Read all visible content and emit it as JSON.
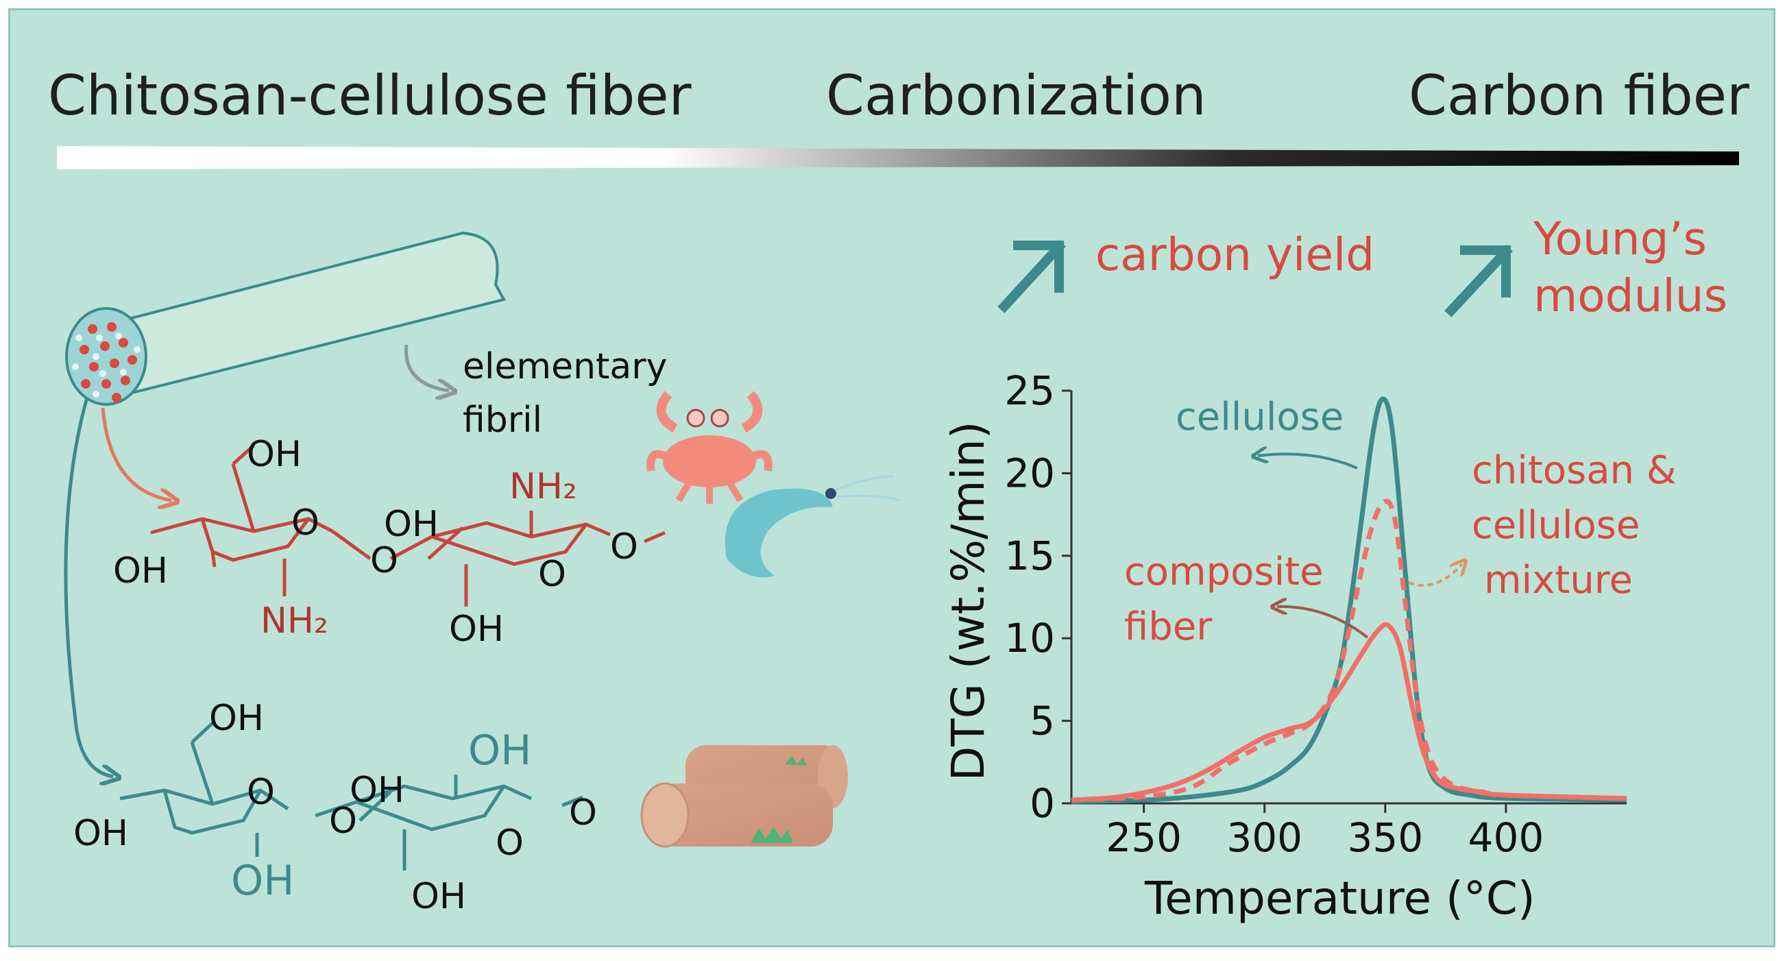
{
  "header": {
    "left": "Chitosan-cellulose fiber",
    "middle": "Carbonization",
    "right": "Carbon fiber"
  },
  "properties": {
    "carbon_yield": "carbon yield",
    "youngs_line1": "Young’s",
    "youngs_line2": "modulus"
  },
  "fiber": {
    "elementary_line1": "elementary",
    "elementary_line2": "fibril"
  },
  "chitosan_structure": {
    "oh_top": "OH",
    "oh_left": "OH",
    "o_ring1": "O",
    "nh2_bottom": "NH₂",
    "o_link": "O",
    "oh_mid": "OH",
    "nh2_top": "NH₂",
    "o_ring2": "O",
    "oh_bottom": "OH",
    "o_end": "O"
  },
  "cellulose_structure": {
    "oh_top": "OH",
    "oh_left": "OH",
    "o_ring1": "O",
    "oh_bottom_accent": "OH",
    "o_link": "O",
    "oh_mid": "OH",
    "oh_top_accent": "OH",
    "o_ring2": "O",
    "oh_bottom": "OH",
    "o_end": "O"
  },
  "colors": {
    "background": "#bde3d8",
    "teal": "#3d8a8c",
    "red": "#d84a3e",
    "chitosan_line": "#c8443a",
    "salmon": "#f07067"
  },
  "chart_data": {
    "type": "line",
    "xlabel": "Temperature (°C)",
    "ylabel": "DTG (wt.%/min)",
    "xlim": [
      220,
      450
    ],
    "ylim": [
      0,
      25
    ],
    "xticks": [
      250,
      300,
      350,
      400
    ],
    "yticks": [
      0,
      5,
      10,
      15,
      20,
      25
    ],
    "series": [
      {
        "name": "cellulose",
        "color": "#3d8a8c",
        "style": "solid",
        "x": [
          220,
          250,
          270,
          290,
          300,
          310,
          320,
          330,
          335,
          340,
          345,
          349,
          353,
          358,
          363,
          368,
          375,
          385,
          400,
          450
        ],
        "y": [
          0.1,
          0.2,
          0.4,
          0.8,
          1.3,
          2.2,
          3.8,
          7.5,
          11.5,
          17,
          22.5,
          24.5,
          22.5,
          14.5,
          6.5,
          2.2,
          0.9,
          0.5,
          0.3,
          0.2
        ]
      },
      {
        "name": "chitosan & cellulose mixture",
        "color": "#f07067",
        "style": "dashed",
        "x": [
          220,
          250,
          270,
          285,
          300,
          310,
          320,
          330,
          340,
          345,
          350,
          354,
          358,
          363,
          368,
          375,
          385,
          400,
          450
        ],
        "y": [
          0.2,
          0.4,
          1.0,
          2.4,
          3.6,
          4.2,
          5.0,
          7.5,
          14.0,
          17.0,
          18.3,
          17.2,
          12.5,
          6.5,
          3.0,
          1.4,
          0.8,
          0.5,
          0.3
        ]
      },
      {
        "name": "composite fiber",
        "color": "#f07067",
        "style": "solid",
        "x": [
          220,
          240,
          260,
          275,
          290,
          300,
          310,
          320,
          330,
          340,
          346,
          351,
          356,
          361,
          366,
          372,
          380,
          390,
          400,
          450
        ],
        "y": [
          0.2,
          0.4,
          1.0,
          1.9,
          3.2,
          4.0,
          4.5,
          5.0,
          6.7,
          9.0,
          10.3,
          10.8,
          9.5,
          6.0,
          3.0,
          1.4,
          0.9,
          0.7,
          0.5,
          0.3
        ]
      }
    ],
    "annotations": {
      "cellulose": "cellulose",
      "composite_line1": "composite",
      "composite_line2": "fiber",
      "mixture_line1": "chitosan &",
      "mixture_line2": "cellulose",
      "mixture_line3": "mixture"
    }
  }
}
